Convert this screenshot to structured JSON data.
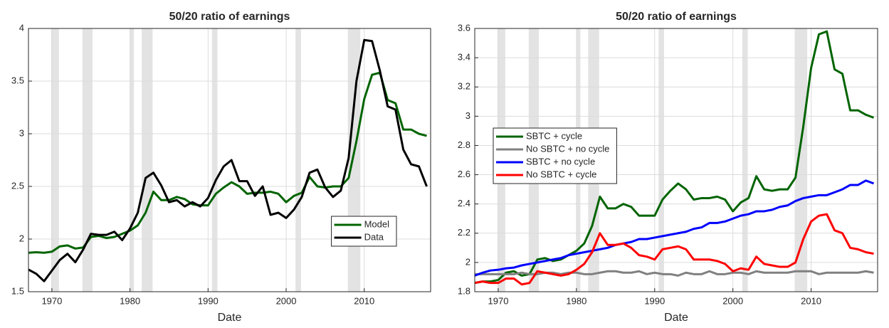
{
  "chart_data": [
    {
      "type": "line",
      "title": "50/20 ratio of earnings",
      "xlabel": "Date",
      "x": [
        1967,
        1968,
        1969,
        1970,
        1971,
        1972,
        1973,
        1974,
        1975,
        1976,
        1977,
        1978,
        1979,
        1980,
        1981,
        1982,
        1983,
        1984,
        1985,
        1986,
        1987,
        1988,
        1989,
        1990,
        1991,
        1992,
        1993,
        1994,
        1995,
        1996,
        1997,
        1998,
        1999,
        2000,
        2001,
        2002,
        2003,
        2004,
        2005,
        2006,
        2007,
        2008,
        2009,
        2010,
        2011,
        2012,
        2013,
        2014,
        2015,
        2016,
        2017,
        2018
      ],
      "series": [
        {
          "name": "Model",
          "color": "#006400",
          "values": [
            1.87,
            1.875,
            1.87,
            1.88,
            1.93,
            1.94,
            1.91,
            1.92,
            2.02,
            2.03,
            2.01,
            2.02,
            2.05,
            2.08,
            2.13,
            2.25,
            2.45,
            2.37,
            2.37,
            2.4,
            2.38,
            2.33,
            2.32,
            2.32,
            2.43,
            2.49,
            2.54,
            2.5,
            2.43,
            2.44,
            2.44,
            2.45,
            2.43,
            2.35,
            2.41,
            2.44,
            2.59,
            2.5,
            2.49,
            2.5,
            2.5,
            2.58,
            2.93,
            3.33,
            3.56,
            3.58,
            3.32,
            3.29,
            3.04,
            3.04,
            3.0,
            2.98
          ]
        },
        {
          "name": "Data",
          "color": "#000000",
          "values": [
            1.71,
            1.67,
            1.6,
            1.7,
            1.8,
            1.86,
            1.78,
            1.9,
            2.05,
            2.04,
            2.04,
            2.07,
            1.99,
            2.1,
            2.25,
            2.58,
            2.63,
            2.51,
            2.35,
            2.37,
            2.31,
            2.35,
            2.31,
            2.39,
            2.56,
            2.69,
            2.75,
            2.55,
            2.55,
            2.41,
            2.5,
            2.23,
            2.25,
            2.2,
            2.28,
            2.4,
            2.63,
            2.66,
            2.49,
            2.4,
            2.46,
            2.77,
            3.5,
            3.89,
            3.88,
            3.6,
            3.26,
            3.23,
            2.85,
            2.71,
            2.69,
            2.5
          ]
        }
      ],
      "shaded_periods": [
        [
          1969.9,
          1970.9
        ],
        [
          1973.9,
          1975.2
        ],
        [
          1980.0,
          1980.5
        ],
        [
          1981.5,
          1982.9
        ],
        [
          1990.5,
          1991.2
        ],
        [
          2001.2,
          2001.9
        ],
        [
          2007.9,
          2009.5
        ]
      ],
      "xlim": [
        1967,
        2018.5
      ],
      "ylim": [
        1.5,
        4
      ],
      "xticks": [
        1970,
        1980,
        1990,
        2000,
        2010
      ],
      "yticks": [
        1.5,
        2,
        2.5,
        3,
        3.5,
        4
      ],
      "grid": true,
      "legend": "lower right"
    },
    {
      "type": "line",
      "title": "50/20 ratio of earnings",
      "xlabel": "Date",
      "x": [
        1967,
        1968,
        1969,
        1970,
        1971,
        1972,
        1973,
        1974,
        1975,
        1976,
        1977,
        1978,
        1979,
        1980,
        1981,
        1982,
        1983,
        1984,
        1985,
        1986,
        1987,
        1988,
        1989,
        1990,
        1991,
        1992,
        1993,
        1994,
        1995,
        1996,
        1997,
        1998,
        1999,
        2000,
        2001,
        2002,
        2003,
        2004,
        2005,
        2006,
        2007,
        2008,
        2009,
        2010,
        2011,
        2012,
        2013,
        2014,
        2015,
        2016,
        2017,
        2018
      ],
      "series": [
        {
          "name": "SBTC + cycle",
          "color": "#006400",
          "values": [
            1.86,
            1.87,
            1.87,
            1.88,
            1.93,
            1.94,
            1.91,
            1.92,
            2.02,
            2.03,
            2.01,
            2.02,
            2.05,
            2.08,
            2.13,
            2.25,
            2.45,
            2.37,
            2.37,
            2.4,
            2.38,
            2.32,
            2.32,
            2.32,
            2.43,
            2.49,
            2.54,
            2.5,
            2.43,
            2.44,
            2.44,
            2.45,
            2.43,
            2.35,
            2.41,
            2.44,
            2.59,
            2.5,
            2.49,
            2.5,
            2.5,
            2.58,
            2.93,
            3.33,
            3.56,
            3.58,
            3.32,
            3.29,
            3.04,
            3.04,
            3.01,
            2.99
          ]
        },
        {
          "name": "No SBTC + no cycle",
          "color": "#808080",
          "values": [
            1.92,
            1.92,
            1.92,
            1.92,
            1.92,
            1.92,
            1.93,
            1.92,
            1.92,
            1.93,
            1.93,
            1.92,
            1.93,
            1.93,
            1.92,
            1.92,
            1.93,
            1.94,
            1.94,
            1.93,
            1.93,
            1.94,
            1.92,
            1.93,
            1.92,
            1.92,
            1.91,
            1.93,
            1.92,
            1.92,
            1.94,
            1.92,
            1.92,
            1.93,
            1.93,
            1.92,
            1.94,
            1.93,
            1.93,
            1.93,
            1.93,
            1.94,
            1.94,
            1.94,
            1.92,
            1.93,
            1.93,
            1.93,
            1.93,
            1.93,
            1.94,
            1.93
          ]
        },
        {
          "name": "SBTC + no cycle",
          "color": "#0000ff",
          "values": [
            1.91,
            1.93,
            1.945,
            1.95,
            1.96,
            1.965,
            1.98,
            1.99,
            2.0,
            2.01,
            2.02,
            2.03,
            2.05,
            2.06,
            2.07,
            2.08,
            2.09,
            2.1,
            2.12,
            2.13,
            2.14,
            2.16,
            2.16,
            2.17,
            2.18,
            2.19,
            2.2,
            2.21,
            2.23,
            2.24,
            2.27,
            2.27,
            2.28,
            2.3,
            2.32,
            2.33,
            2.35,
            2.35,
            2.36,
            2.38,
            2.39,
            2.42,
            2.44,
            2.45,
            2.46,
            2.46,
            2.48,
            2.5,
            2.53,
            2.53,
            2.56,
            2.54
          ]
        },
        {
          "name": "No SBTC + cycle",
          "color": "#ff0000",
          "values": [
            1.86,
            1.87,
            1.86,
            1.86,
            1.89,
            1.89,
            1.85,
            1.86,
            1.94,
            1.93,
            1.92,
            1.91,
            1.92,
            1.95,
            1.99,
            2.07,
            2.2,
            2.12,
            2.12,
            2.13,
            2.1,
            2.05,
            2.04,
            2.02,
            2.09,
            2.1,
            2.11,
            2.09,
            2.02,
            2.02,
            2.02,
            2.01,
            1.99,
            1.94,
            1.96,
            1.95,
            2.04,
            1.99,
            1.98,
            1.97,
            1.97,
            2.0,
            2.16,
            2.28,
            2.32,
            2.33,
            2.22,
            2.2,
            2.1,
            2.09,
            2.07,
            2.06
          ]
        }
      ],
      "shaded_periods": [
        [
          1969.9,
          1970.9
        ],
        [
          1973.9,
          1975.2
        ],
        [
          1980.0,
          1980.5
        ],
        [
          1981.5,
          1982.9
        ],
        [
          1990.5,
          1991.2
        ],
        [
          2001.2,
          2001.9
        ],
        [
          2007.9,
          2009.5
        ]
      ],
      "xlim": [
        1967,
        2018.5
      ],
      "ylim": [
        1.8,
        3.6
      ],
      "xticks": [
        1970,
        1980,
        1990,
        2000,
        2010
      ],
      "yticks": [
        1.8,
        2,
        2.2,
        2.4,
        2.6,
        2.8,
        3,
        3.2,
        3.4,
        3.6
      ],
      "grid": true,
      "legend": "upper left"
    }
  ]
}
